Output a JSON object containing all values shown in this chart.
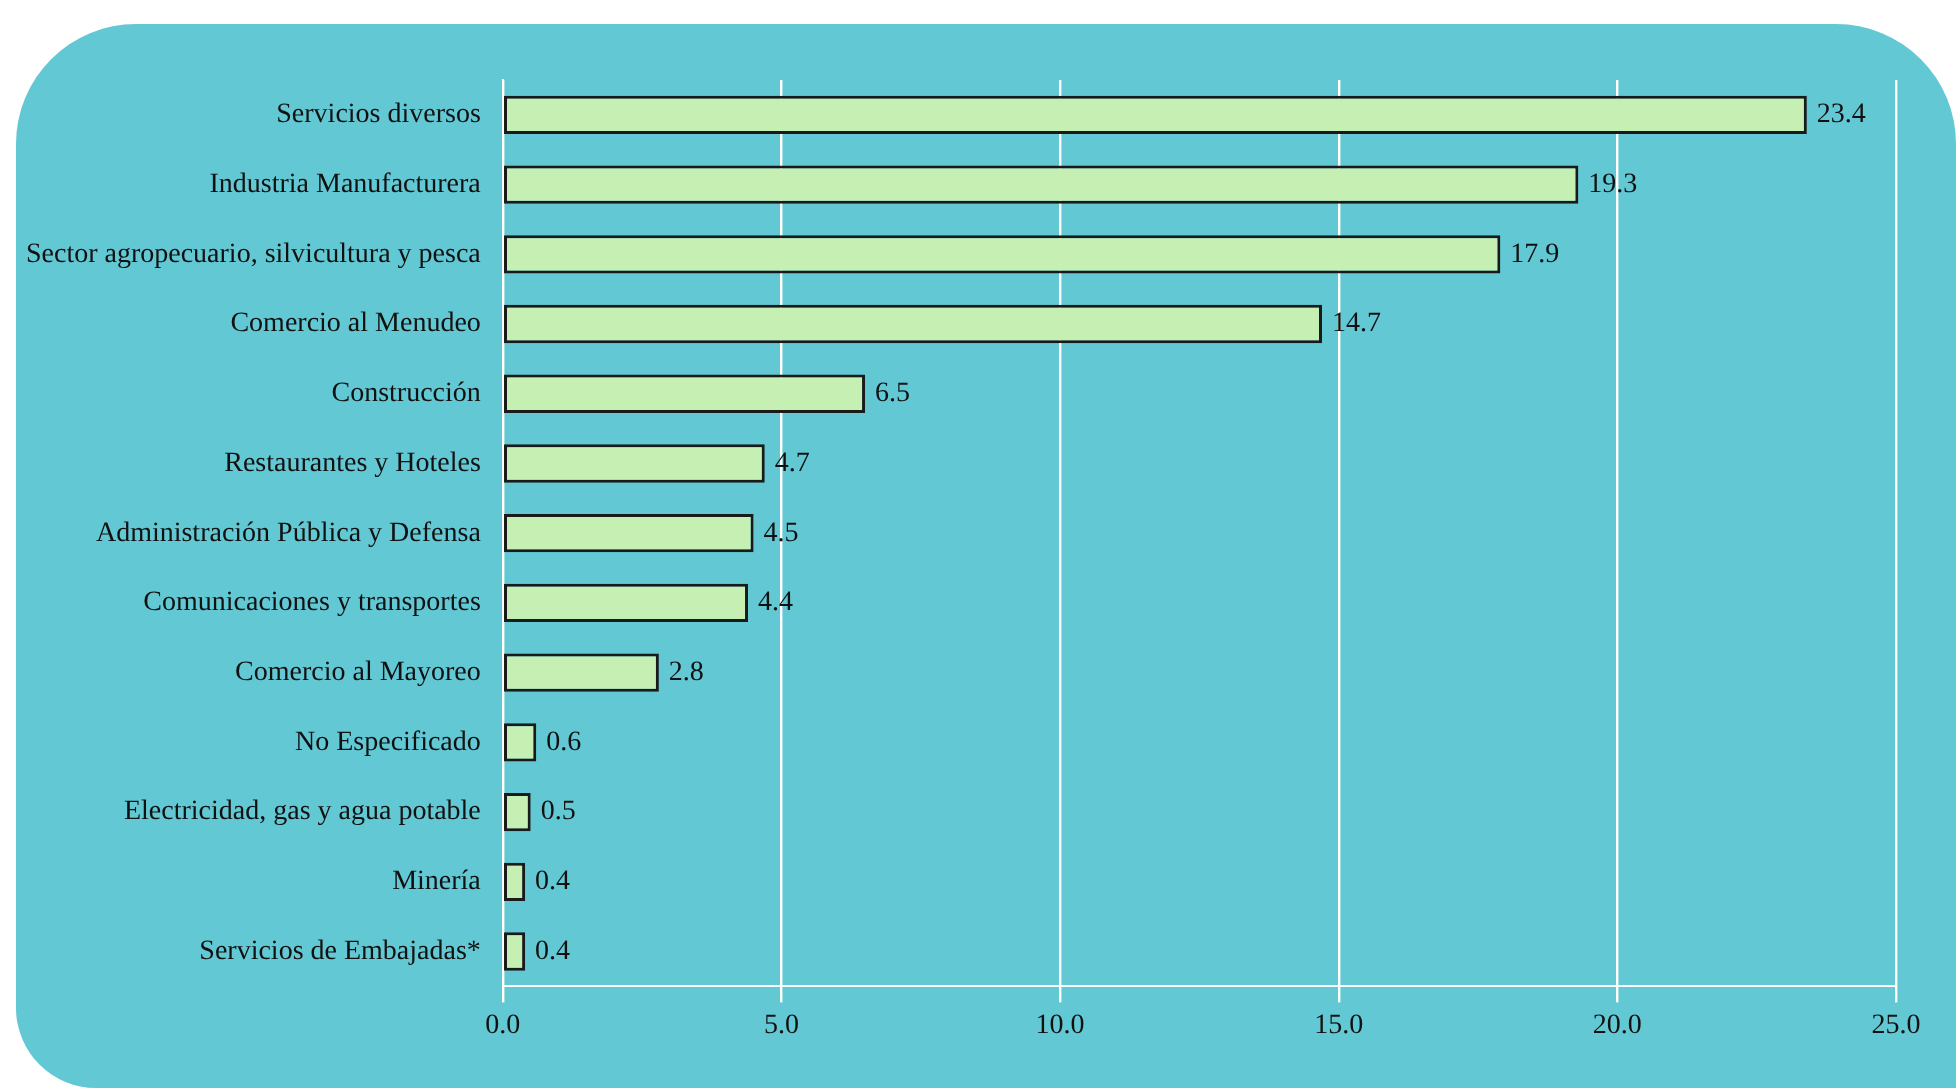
{
  "chart_data": {
    "type": "bar",
    "orientation": "horizontal",
    "categories": [
      "Servicios diversos",
      "Industria Manufacturera",
      "Sector agropecuario, silvicultura y pesca",
      "Comercio al Menudeo",
      "Construcción",
      "Restaurantes y Hoteles",
      "Administración Pública y Defensa",
      "Comunicaciones y transportes",
      "Comercio al Mayoreo",
      "No Especificado",
      "Electricidad, gas y agua potable",
      "Minería",
      "Servicios de Embajadas*"
    ],
    "values": [
      23.4,
      19.3,
      17.9,
      14.7,
      6.5,
      4.7,
      4.5,
      4.4,
      2.8,
      0.6,
      0.5,
      0.4,
      0.4
    ],
    "color": "#c6efb4",
    "xlim": [
      0,
      25
    ],
    "xticks": [
      {
        "value": 0,
        "label": "0.0"
      },
      {
        "value": 5,
        "label": "5.0"
      },
      {
        "value": 10,
        "label": "10.0"
      },
      {
        "value": 15,
        "label": "15.0"
      },
      {
        "value": 20,
        "label": "20.0"
      },
      {
        "value": 25,
        "label": "25.0"
      }
    ],
    "grid": "x",
    "legend": false,
    "data_labels": true
  }
}
